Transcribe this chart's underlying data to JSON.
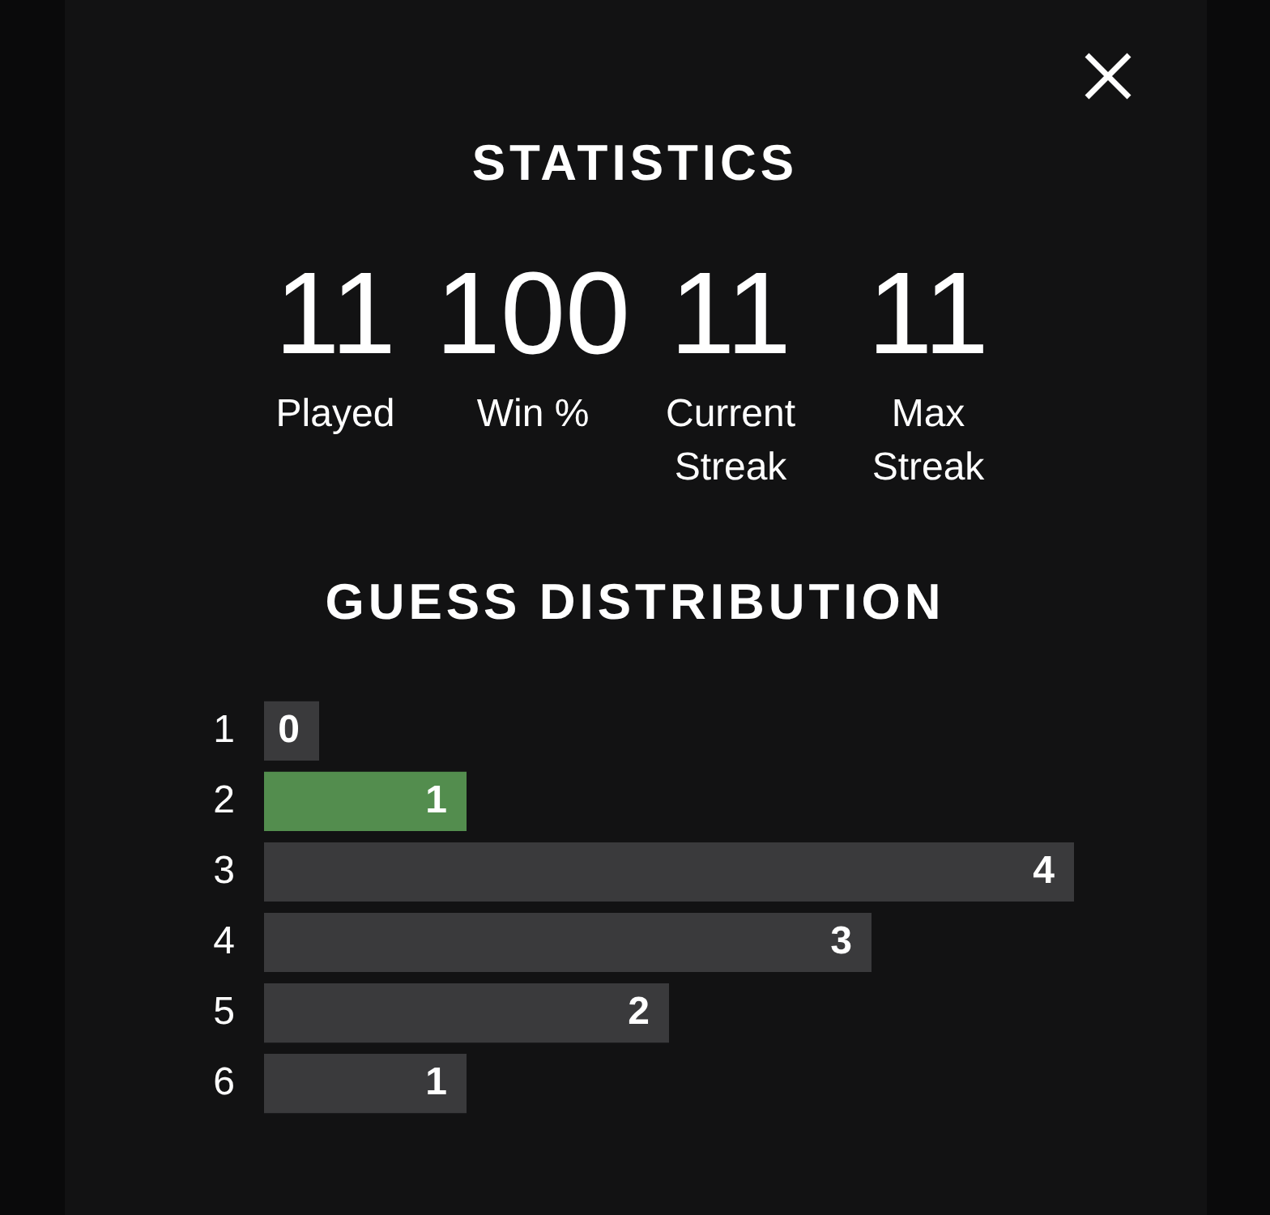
{
  "chart_data": [
    {
      "type": "other",
      "title": "STATISTICS",
      "categories": [
        "Played",
        "Win %",
        "Current Streak",
        "Max Streak"
      ],
      "values": [
        11,
        100,
        11,
        11
      ],
      "data_labels": true
    },
    {
      "type": "bar",
      "orientation": "horizontal",
      "title": "GUESS DISTRIBUTION",
      "categories": [
        "1",
        "2",
        "3",
        "4",
        "5",
        "6"
      ],
      "values": [
        0,
        1,
        4,
        3,
        2,
        1
      ],
      "colors": [
        "#3a3a3c",
        "#538d4e",
        "#3a3a3c",
        "#3a3a3c",
        "#3a3a3c",
        "#3a3a3c"
      ],
      "data_labels": true
    }
  ]
}
